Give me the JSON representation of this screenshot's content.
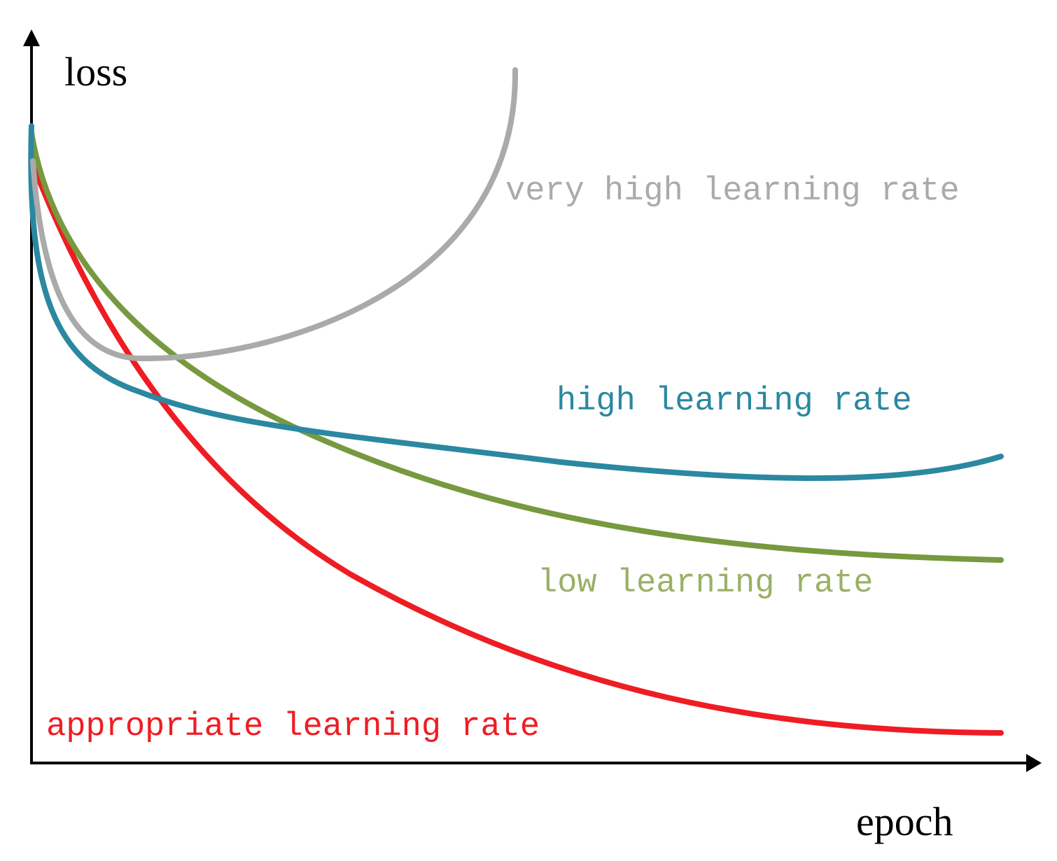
{
  "axes": {
    "y_label": "loss",
    "x_label": "epoch"
  },
  "curves": [
    {
      "label": "very high learning rate"
    },
    {
      "label": "high learning rate"
    },
    {
      "label": "low learning rate"
    },
    {
      "label": "appropriate learning rate"
    }
  ]
}
